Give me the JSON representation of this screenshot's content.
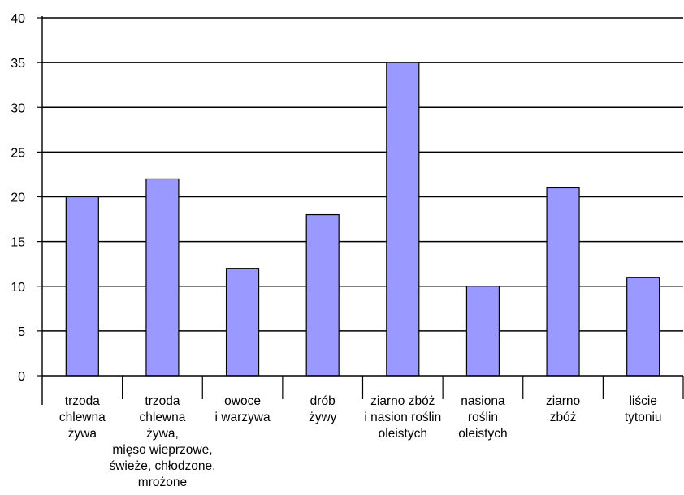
{
  "chart_data": {
    "type": "bar",
    "categories": [
      [
        "trzoda",
        "chlewna",
        "żywa"
      ],
      [
        "trzoda",
        "chlewna",
        "żywa,",
        "mięso wieprzowe,",
        "świeże, chłodzone,",
        "mrożone"
      ],
      [
        "owoce",
        "i warzywa"
      ],
      [
        "drób",
        "żywy"
      ],
      [
        "ziarno zbóż",
        "i nasion roślin",
        "oleistych"
      ],
      [
        "nasiona",
        "roślin",
        "oleistych"
      ],
      [
        "ziarno",
        "zbóż"
      ],
      [
        "liście",
        "tytoniu"
      ]
    ],
    "values": [
      20,
      22,
      12,
      18,
      35,
      10,
      21,
      11
    ],
    "ylim": [
      0,
      40
    ],
    "yticks": [
      "0",
      "5",
      "10",
      "15",
      "20",
      "25",
      "30",
      "35",
      "40"
    ],
    "grid": true,
    "legend": "none",
    "title": "",
    "xlabel": "",
    "ylabel": "",
    "colors": {
      "bar_fill": "#9999ff",
      "bar_stroke": "#000000",
      "gridline": "#000000",
      "axis": "#000000"
    }
  }
}
